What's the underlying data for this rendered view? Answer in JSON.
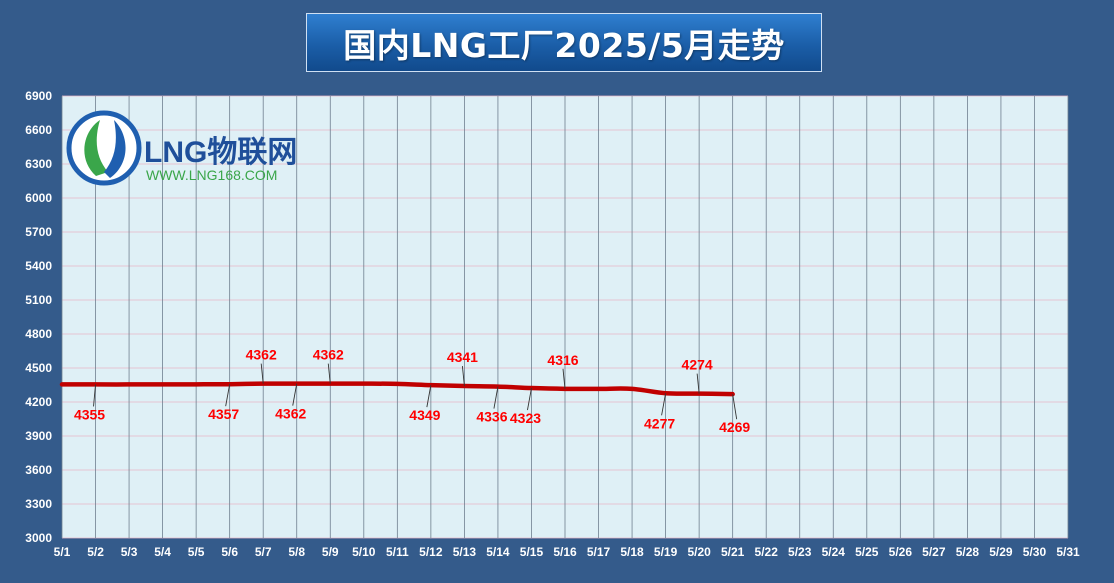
{
  "title": "国内LNG工厂2025/5月走势",
  "logo": {
    "brand": "LNG物联网",
    "url": "WWW.LNG168.COM"
  },
  "colors": {
    "background": "#345b8b",
    "plot_area": "#dff0f6",
    "line": "#c00000",
    "label": "#ff0000",
    "axis_text": "#ffffff"
  },
  "chart_data": {
    "type": "line",
    "title": "国内LNG工厂2025/5月走势",
    "xlabel": "",
    "ylabel": "",
    "ylim": [
      3000,
      6900
    ],
    "yticks": [
      3000,
      3300,
      3600,
      3900,
      4200,
      4500,
      4800,
      5100,
      5400,
      5700,
      6000,
      6300,
      6600,
      6900
    ],
    "grid": true,
    "categories": [
      "5/1",
      "5/2",
      "5/3",
      "5/4",
      "5/5",
      "5/6",
      "5/7",
      "5/8",
      "5/9",
      "5/10",
      "5/11",
      "5/12",
      "5/13",
      "5/14",
      "5/15",
      "5/16",
      "5/17",
      "5/18",
      "5/19",
      "5/20",
      "5/21",
      "5/22",
      "5/23",
      "5/24",
      "5/25",
      "5/26",
      "5/27",
      "5/28",
      "5/29",
      "5/30",
      "5/31"
    ],
    "series": [
      {
        "values": [
          4355,
          4355,
          4355,
          4356,
          4356,
          4357,
          4362,
          4362,
          4362,
          4362,
          4360,
          4349,
          4341,
          4336,
          4323,
          4316,
          4316,
          4316,
          4277,
          4274,
          4269,
          null,
          null,
          null,
          null,
          null,
          null,
          null,
          null,
          null,
          null
        ]
      }
    ],
    "annotations": [
      {
        "day": "5/2",
        "text": "4355",
        "side": "below"
      },
      {
        "day": "5/6",
        "text": "4357",
        "side": "below"
      },
      {
        "day": "5/7",
        "text": "4362",
        "side": "above"
      },
      {
        "day": "5/8",
        "text": "4362",
        "side": "below"
      },
      {
        "day": "5/9",
        "text": "4362",
        "side": "above"
      },
      {
        "day": "5/12",
        "text": "4349",
        "side": "below"
      },
      {
        "day": "5/13",
        "text": "4341",
        "side": "above"
      },
      {
        "day": "5/14",
        "text": "4336",
        "side": "below"
      },
      {
        "day": "5/15",
        "text": "4323",
        "side": "below"
      },
      {
        "day": "5/16",
        "text": "4316",
        "side": "above"
      },
      {
        "day": "5/19",
        "text": "4277",
        "side": "below"
      },
      {
        "day": "5/20",
        "text": "4274",
        "side": "above"
      },
      {
        "day": "5/21",
        "text": "4269",
        "side": "below"
      }
    ]
  }
}
